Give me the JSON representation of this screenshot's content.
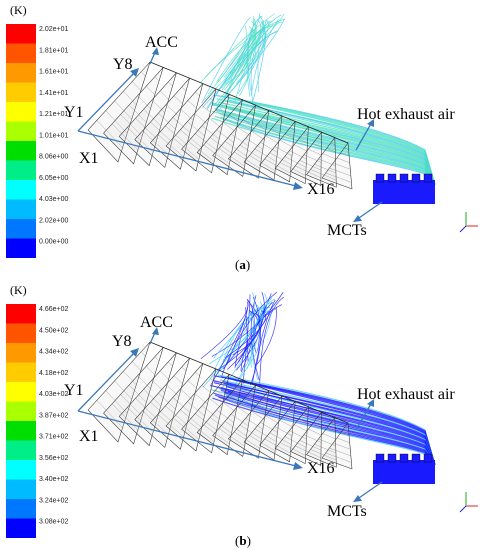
{
  "panels": [
    {
      "id": "a",
      "unit_label": "(K)",
      "caption_open": "(",
      "caption_letter": "a",
      "caption_close": ")",
      "colorbar": {
        "colors": [
          "#ff0000",
          "#ff5500",
          "#ff9900",
          "#ffcc00",
          "#ffff00",
          "#aaff00",
          "#00dd00",
          "#00ee88",
          "#00ffff",
          "#00bbff",
          "#0077ff",
          "#0000ff"
        ],
        "ticks": [
          "2.02e+01",
          "1.81e+01",
          "1.61e+01",
          "1.41e+01",
          "1.21e+01",
          "1.01e+01",
          "8.06e+00",
          "6.05e+00",
          "4.03e+00",
          "2.02e+00",
          "0.00e+00"
        ]
      },
      "labels": {
        "acc": "ACC",
        "y8": "Y8",
        "y1": "Y1",
        "x1": "X1",
        "x16": "X16",
        "hot_exhaust": "Hot exhaust air",
        "mcts": "MCTs"
      },
      "plume_color": "#4fe0c0",
      "plume_high_color": "#49c8ff",
      "mct_color": "#1a1aff"
    },
    {
      "id": "b",
      "unit_label": "(K)",
      "caption_open": "(",
      "caption_letter": "b",
      "caption_close": ")",
      "colorbar": {
        "colors": [
          "#ff0000",
          "#ff5500",
          "#ff9900",
          "#ffcc00",
          "#ffff00",
          "#aaff00",
          "#00dd00",
          "#00ee88",
          "#00ffff",
          "#00bbff",
          "#0077ff",
          "#0000ff"
        ],
        "ticks": [
          "4.66e+02",
          "4.50e+02",
          "4.34e+02",
          "4.18e+02",
          "4.03e+02",
          "3.87e+02",
          "3.71e+02",
          "3.56e+02",
          "3.40e+02",
          "3.24e+02",
          "3.08e+02"
        ]
      },
      "labels": {
        "acc": "ACC",
        "y8": "Y8",
        "y1": "Y1",
        "x1": "X1",
        "x16": "X16",
        "hot_exhaust": "Hot exhaust air",
        "mcts": "MCTs"
      },
      "plume_color": "#1a1aff",
      "plume_high_color": "#3fc8ff",
      "mct_color": "#1a1aff"
    }
  ]
}
